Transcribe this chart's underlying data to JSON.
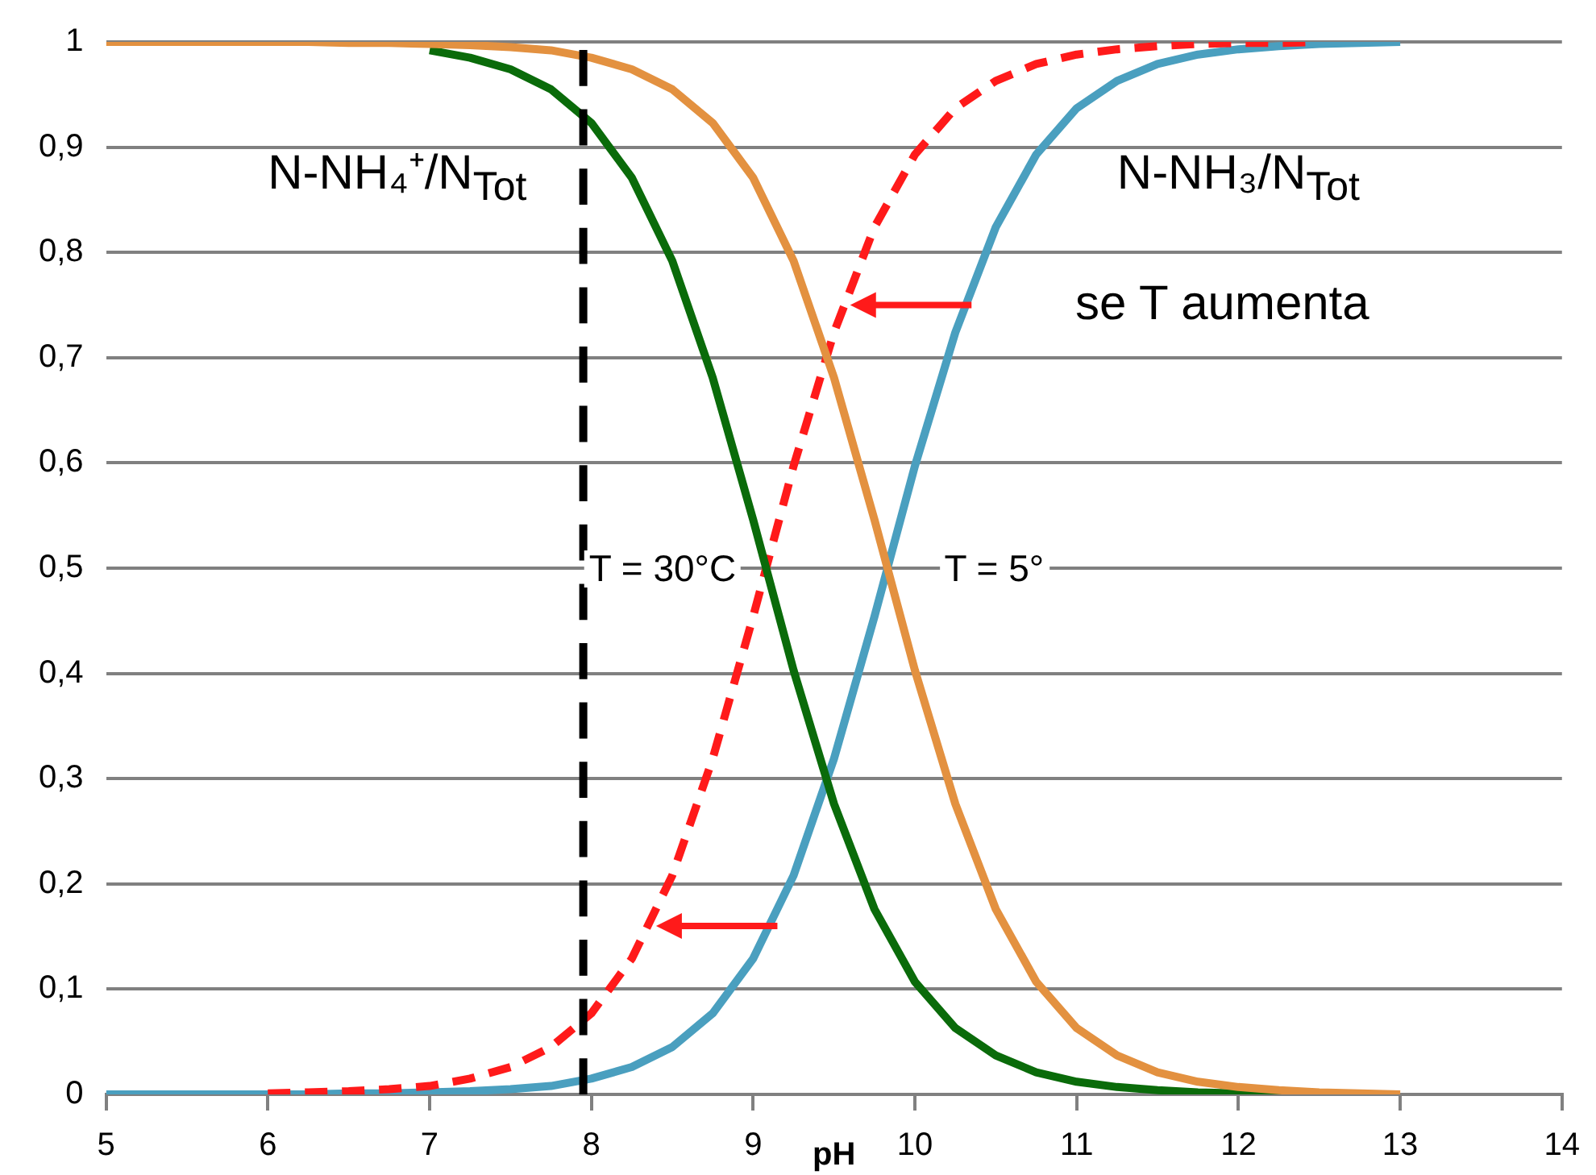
{
  "chart_data": {
    "type": "line",
    "xlabel": "pH",
    "xlim": [
      5,
      14
    ],
    "xticks": [
      5,
      6,
      7,
      8,
      9,
      10,
      11,
      12,
      13,
      14
    ],
    "ylim": [
      0,
      1
    ],
    "yticks": [
      0,
      {
        "value": 0.1,
        "label": "0,1"
      },
      {
        "value": 0.2,
        "label": "0,2"
      },
      {
        "value": 0.3,
        "label": "0,3"
      },
      {
        "value": 0.4,
        "label": "0,4"
      },
      {
        "value": 0.5,
        "label": "0,5"
      },
      {
        "value": 0.6,
        "label": "0,6"
      },
      {
        "value": 0.7,
        "label": "0,7"
      },
      {
        "value": 0.8,
        "label": "0,8"
      },
      {
        "value": 0.9,
        "label": "0,9"
      },
      1
    ],
    "grid": "y",
    "legend": false,
    "marker": "none",
    "series": [
      {
        "color": "#e39140",
        "line_style": "solid",
        "x": [
          5,
          5.25,
          5.5,
          5.75,
          6,
          6.25,
          6.5,
          6.75,
          7,
          7.25,
          7.5,
          7.75,
          8,
          8.25,
          8.5,
          8.75,
          9,
          9.25,
          9.5,
          9.75,
          10,
          10.25,
          10.5,
          10.75,
          11,
          11.25,
          11.5,
          11.75,
          12,
          12.25,
          12.5,
          12.75,
          13
        ],
        "values": [
          1,
          1,
          1,
          1,
          1,
          1,
          0.999,
          0.999,
          0.998,
          0.997,
          0.995,
          0.992,
          0.985,
          0.974,
          0.955,
          0.923,
          0.871,
          0.792,
          0.681,
          0.546,
          0.403,
          0.276,
          0.176,
          0.107,
          0.063,
          0.037,
          0.021,
          0.012,
          0.007,
          0.004,
          0.002,
          0.001,
          0
        ]
      },
      {
        "color": "#0a6b0a",
        "line_style": "solid",
        "x": [
          7,
          7.25,
          7.5,
          7.75,
          8,
          8.25,
          8.5,
          8.75,
          9,
          9.25,
          9.5,
          9.75,
          10,
          10.25,
          10.5,
          10.75,
          11,
          11.25,
          11.5,
          11.75,
          12,
          12.25,
          12.5
        ],
        "values": [
          0.992,
          0.985,
          0.974,
          0.955,
          0.923,
          0.871,
          0.792,
          0.681,
          0.546,
          0.403,
          0.276,
          0.176,
          0.107,
          0.063,
          0.037,
          0.021,
          0.012,
          0.007,
          0.004,
          0.002,
          0.001,
          0.001,
          0
        ]
      },
      {
        "color": "#ff1a1a",
        "line_style": "dashed",
        "x": [
          6,
          6.25,
          6.5,
          6.75,
          7,
          7.25,
          7.5,
          7.75,
          8,
          8.25,
          8.5,
          8.75,
          9,
          9.25,
          9.5,
          9.75,
          10,
          10.25,
          10.5,
          10.75,
          11,
          11.25,
          11.5,
          11.75,
          12,
          12.25,
          12.5
        ],
        "values": [
          0.001,
          0.002,
          0.003,
          0.005,
          0.008,
          0.015,
          0.026,
          0.045,
          0.077,
          0.129,
          0.208,
          0.319,
          0.454,
          0.597,
          0.724,
          0.824,
          0.893,
          0.937,
          0.963,
          0.979,
          0.988,
          0.993,
          0.996,
          0.998,
          0.999,
          0.999,
          1
        ]
      },
      {
        "color": "#4a9fbf",
        "line_style": "solid",
        "x": [
          5,
          5.25,
          5.5,
          5.75,
          6,
          6.25,
          6.5,
          6.75,
          7,
          7.25,
          7.5,
          7.75,
          8,
          8.25,
          8.5,
          8.75,
          9,
          9.25,
          9.5,
          9.75,
          10,
          10.25,
          10.5,
          10.75,
          11,
          11.25,
          11.5,
          11.75,
          12,
          12.25,
          12.5,
          12.75,
          13
        ],
        "values": [
          0,
          0,
          0,
          0,
          0,
          0,
          0.001,
          0.001,
          0.002,
          0.003,
          0.005,
          0.008,
          0.015,
          0.026,
          0.045,
          0.077,
          0.129,
          0.208,
          0.319,
          0.454,
          0.597,
          0.724,
          0.824,
          0.893,
          0.937,
          0.963,
          0.979,
          0.988,
          0.993,
          0.996,
          0.998,
          0.999,
          1
        ]
      }
    ],
    "ref_lines": [
      {
        "axis": "x",
        "value": 7.95,
        "color": "#000000",
        "line_style": "dashed"
      }
    ],
    "annotations": [
      "N-NH₄⁺/N$_{Tot}$",
      "N-NH₃/N$_{Tot}$",
      "se T aumenta",
      "T = 30°C",
      "T = 5°"
    ]
  }
}
